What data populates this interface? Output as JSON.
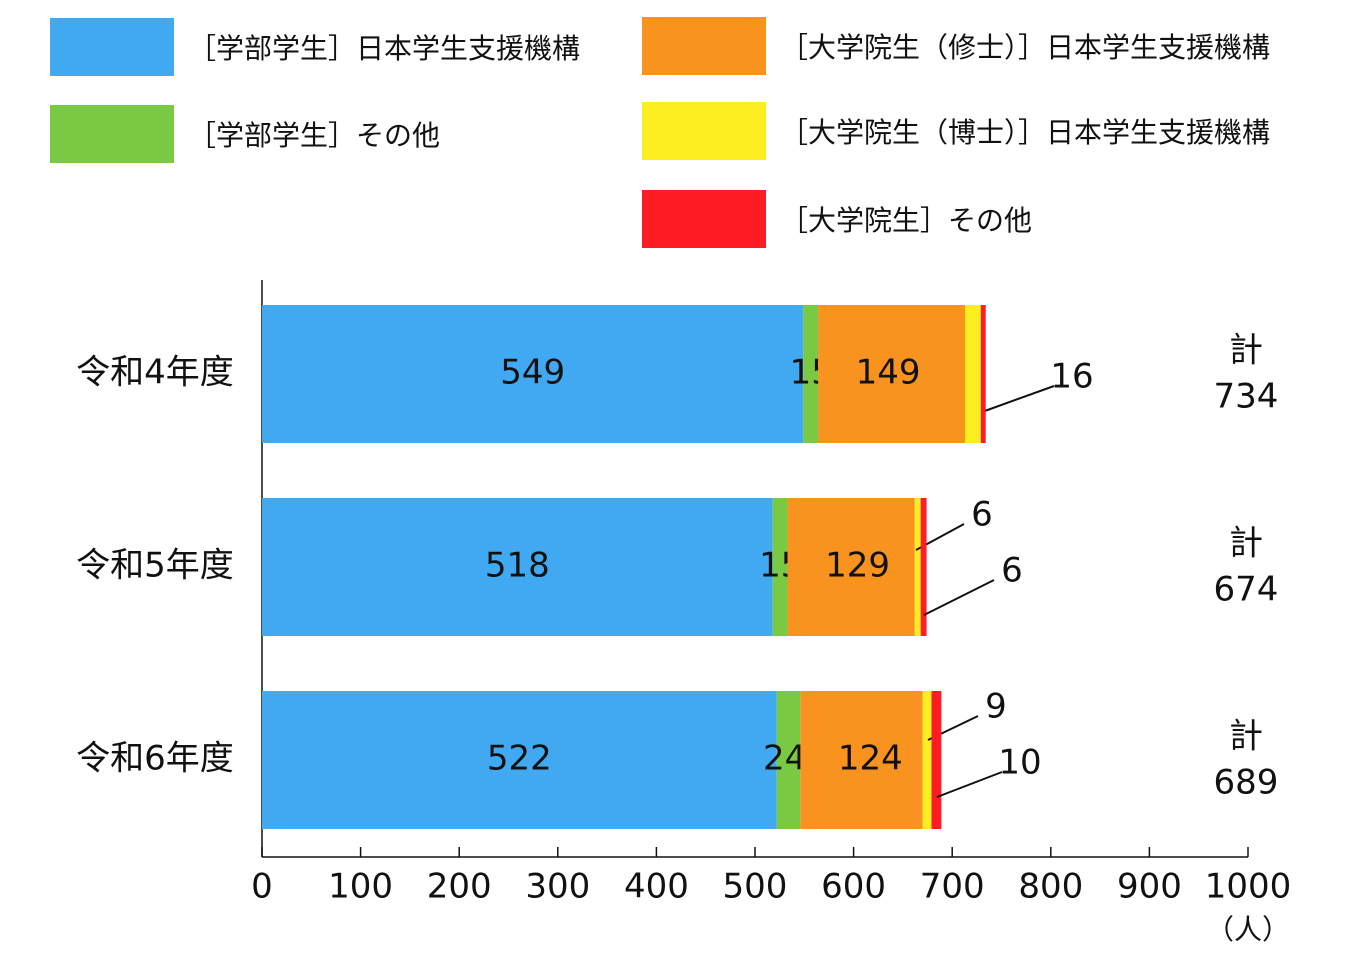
{
  "chart_data": {
    "type": "bar",
    "orientation": "horizontal",
    "stacked": true,
    "categories": [
      "令和4年度",
      "令和5年度",
      "令和6年度"
    ],
    "series": [
      {
        "name": "［学部学生］日本学生支援機構",
        "color": "#41A9F2",
        "values": [
          549,
          518,
          522
        ]
      },
      {
        "name": "［学部学生］その他",
        "color": "#7AC943",
        "values": [
          15,
          15,
          24
        ]
      },
      {
        "name": "［大学院生（修士）］日本学生支援機構",
        "color": "#F7931E",
        "values": [
          149,
          129,
          124
        ]
      },
      {
        "name": "［大学院生（博士）］日本学生支援機構",
        "color": "#FCEE21",
        "values": [
          16,
          6,
          9
        ]
      },
      {
        "name": "［大学院生］その他",
        "color": "#FF1D25",
        "values": [
          5,
          6,
          10
        ]
      }
    ],
    "totals": {
      "label": "計",
      "values": [
        "734",
        "674",
        "689"
      ]
    },
    "xlim": [
      0,
      1000
    ],
    "xticks": [
      "0",
      "100",
      "200",
      "300",
      "400",
      "500",
      "600",
      "700",
      "800",
      "900",
      "1000"
    ],
    "unit": "（人）",
    "grid": false,
    "legend_position": "top"
  }
}
